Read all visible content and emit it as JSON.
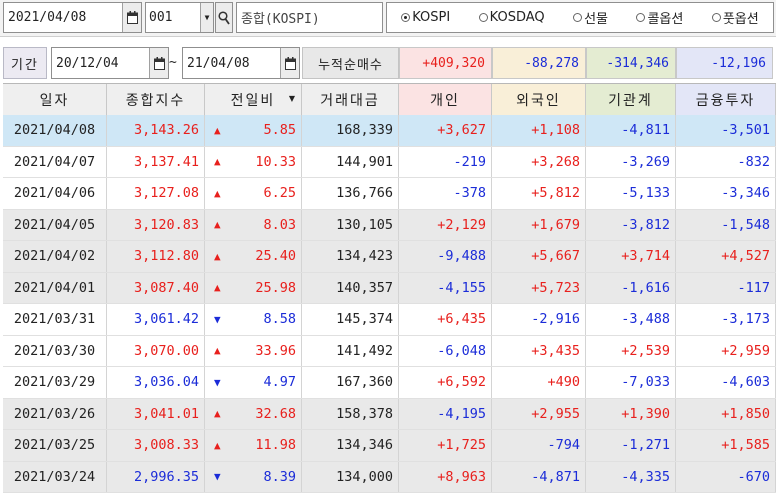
{
  "toolbar": {
    "date": "2021/04/08",
    "code": "001",
    "name": "종합(KOSPI)",
    "markets": [
      {
        "label": "KOSPI",
        "selected": true
      },
      {
        "label": "KOSDAQ",
        "selected": false
      },
      {
        "label": "선물",
        "selected": false
      },
      {
        "label": "콜옵션",
        "selected": false
      },
      {
        "label": "풋옵션",
        "selected": false
      }
    ]
  },
  "period": {
    "label": "기간",
    "from": "20/12/04",
    "to": "21/04/08",
    "separator": "~",
    "cum_label": "누적순매수",
    "cum_values": [
      "+409,320",
      "-88,278",
      "-314,346",
      "-12,196"
    ]
  },
  "colors": {
    "up": "#e8201d",
    "down": "#1b2cd8",
    "selected_row": "#cfe7f6",
    "gray_row": "#e9e9e9",
    "individual_bg": "#fbe3e3",
    "foreign_bg": "#f9efd8",
    "institution_bg": "#e4ecd2",
    "finance_bg": "#e3e6f7"
  },
  "columns": [
    "일자",
    "종합지수",
    "전일비",
    "거래대금",
    "개인",
    "외국인",
    "기관계",
    "금융투자"
  ],
  "rows": [
    {
      "date": "2021/04/08",
      "index": "3,143.26",
      "dir": "up",
      "change": "5.85",
      "volume": "168,339",
      "individual": "+3,627",
      "foreign": "+1,108",
      "institution": "-4,811",
      "finance": "-3,501"
    },
    {
      "date": "2021/04/07",
      "index": "3,137.41",
      "dir": "up",
      "change": "10.33",
      "volume": "144,901",
      "individual": "-219",
      "foreign": "+3,268",
      "institution": "-3,269",
      "finance": "-832"
    },
    {
      "date": "2021/04/06",
      "index": "3,127.08",
      "dir": "up",
      "change": "6.25",
      "volume": "136,766",
      "individual": "-378",
      "foreign": "+5,812",
      "institution": "-5,133",
      "finance": "-3,346"
    },
    {
      "date": "2021/04/05",
      "index": "3,120.83",
      "dir": "up",
      "change": "8.03",
      "volume": "130,105",
      "individual": "+2,129",
      "foreign": "+1,679",
      "institution": "-3,812",
      "finance": "-1,548"
    },
    {
      "date": "2021/04/02",
      "index": "3,112.80",
      "dir": "up",
      "change": "25.40",
      "volume": "134,423",
      "individual": "-9,488",
      "foreign": "+5,667",
      "institution": "+3,714",
      "finance": "+4,527"
    },
    {
      "date": "2021/04/01",
      "index": "3,087.40",
      "dir": "up",
      "change": "25.98",
      "volume": "140,357",
      "individual": "-4,155",
      "foreign": "+5,723",
      "institution": "-1,616",
      "finance": "-117"
    },
    {
      "date": "2021/03/31",
      "index": "3,061.42",
      "dir": "down",
      "change": "8.58",
      "volume": "145,374",
      "individual": "+6,435",
      "foreign": "-2,916",
      "institution": "-3,488",
      "finance": "-3,173"
    },
    {
      "date": "2021/03/30",
      "index": "3,070.00",
      "dir": "up",
      "change": "33.96",
      "volume": "141,492",
      "individual": "-6,048",
      "foreign": "+3,435",
      "institution": "+2,539",
      "finance": "+2,959"
    },
    {
      "date": "2021/03/29",
      "index": "3,036.04",
      "dir": "down",
      "change": "4.97",
      "volume": "167,360",
      "individual": "+6,592",
      "foreign": "+490",
      "institution": "-7,033",
      "finance": "-4,603"
    },
    {
      "date": "2021/03/26",
      "index": "3,041.01",
      "dir": "up",
      "change": "32.68",
      "volume": "158,378",
      "individual": "-4,195",
      "foreign": "+2,955",
      "institution": "+1,390",
      "finance": "+1,850"
    },
    {
      "date": "2021/03/25",
      "index": "3,008.33",
      "dir": "up",
      "change": "11.98",
      "volume": "134,346",
      "individual": "+1,725",
      "foreign": "-794",
      "institution": "-1,271",
      "finance": "+1,585"
    },
    {
      "date": "2021/03/24",
      "index": "2,996.35",
      "dir": "down",
      "change": "8.39",
      "volume": "134,000",
      "individual": "+8,963",
      "foreign": "-4,871",
      "institution": "-4,335",
      "finance": "-670"
    }
  ]
}
